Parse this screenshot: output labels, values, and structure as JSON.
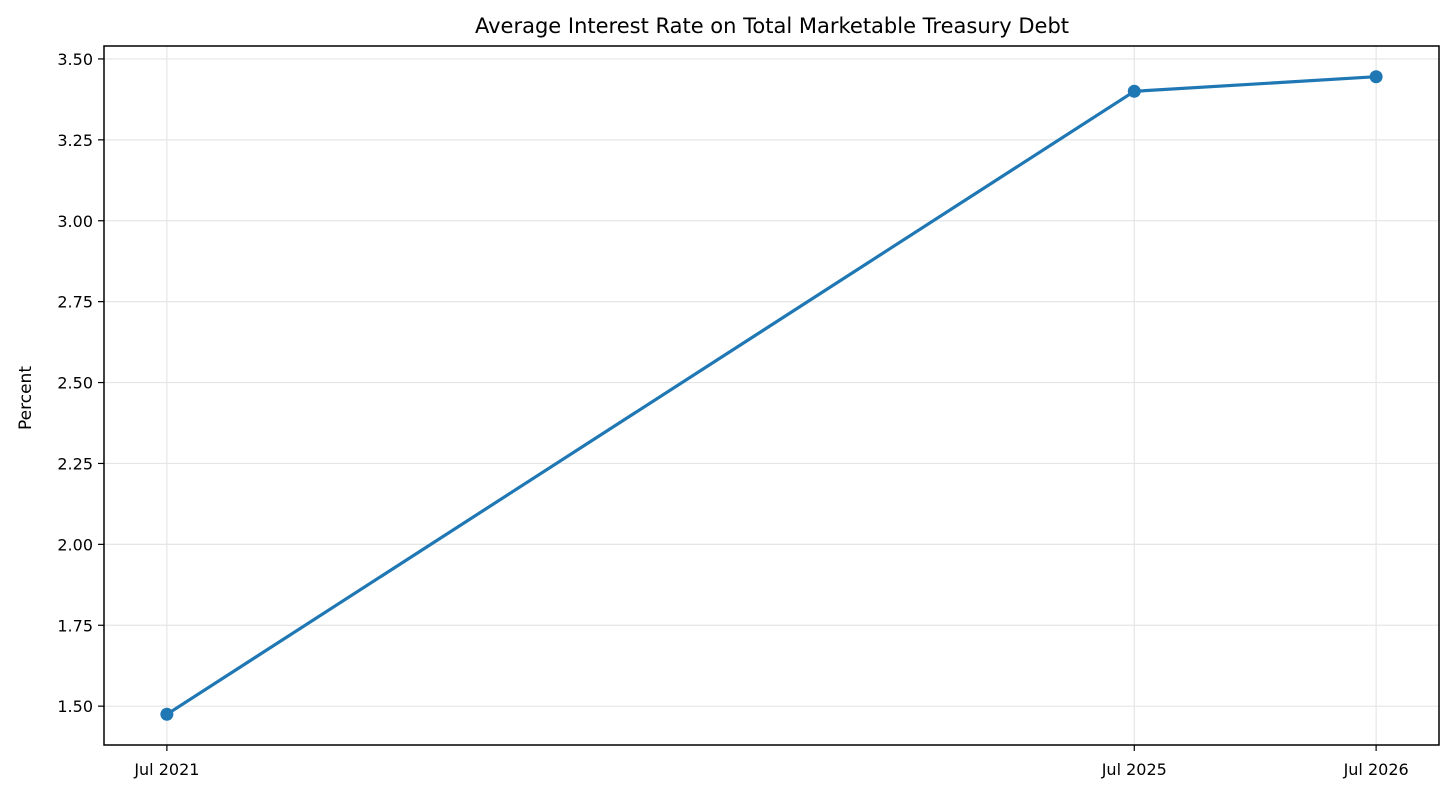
{
  "chart_data": {
    "type": "line",
    "title": "Average Interest Rate on Total Marketable Treasury Debt",
    "xlabel": "",
    "ylabel": "Percent",
    "x": [
      "2021-07",
      "2025-07",
      "2026-07"
    ],
    "x_tick_labels": [
      "Jul 2021",
      "Jul 2025",
      "Jul 2026"
    ],
    "y_ticks": [
      1.5,
      1.75,
      2.0,
      2.25,
      2.5,
      2.75,
      3.0,
      3.25,
      3.5
    ],
    "y_tick_labels": [
      "1.50",
      "1.75",
      "2.00",
      "2.25",
      "2.50",
      "2.75",
      "3.00",
      "3.25",
      "3.50"
    ],
    "ylim": [
      1.38,
      3.54
    ],
    "grid": true,
    "legend": "none",
    "series": [
      {
        "values": [
          1.475,
          3.4,
          3.445
        ],
        "color": "#1f77b4",
        "marker": "circle"
      }
    ]
  }
}
